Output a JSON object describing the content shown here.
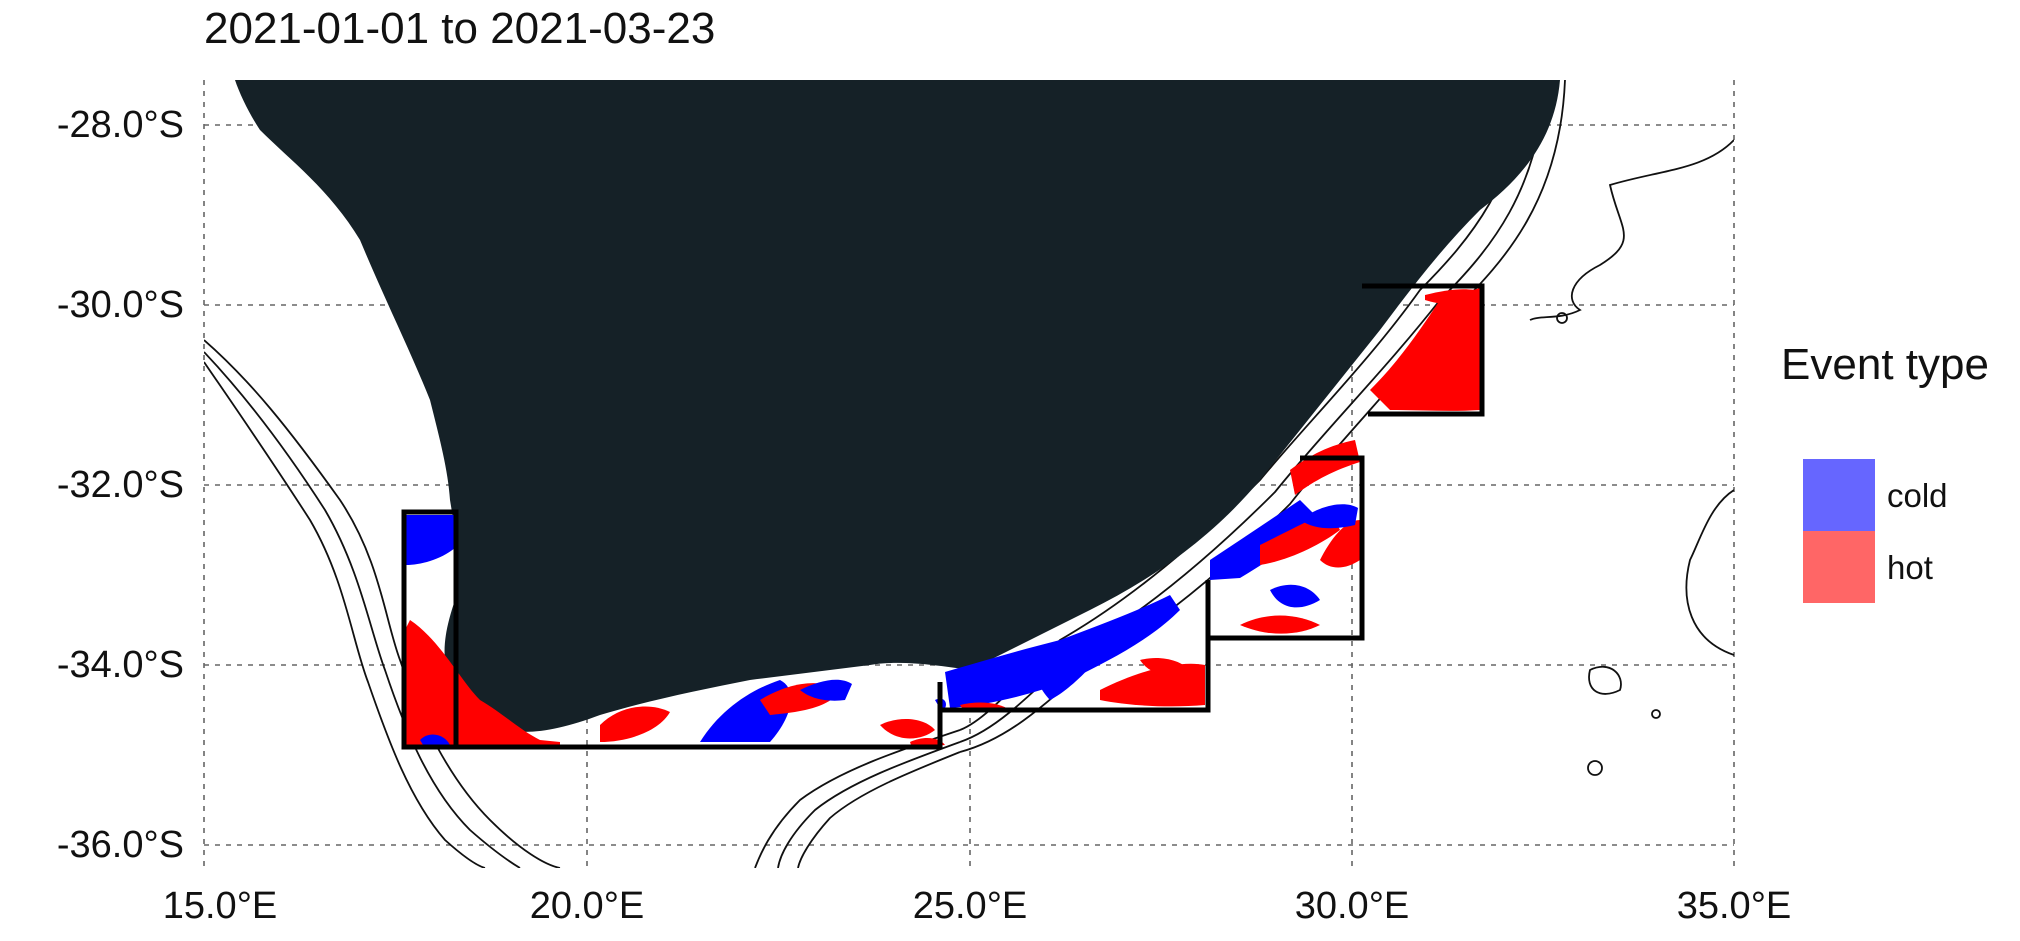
{
  "title": "2021-01-01 to 2021-03-23",
  "map": {
    "lon_range": [
      15.0,
      35.0
    ],
    "lat_range": [
      -36.3,
      -27.5
    ],
    "x_ticks": [
      "15.0°E",
      "20.0°E",
      "25.0°E",
      "30.0°E",
      "35.0°E"
    ],
    "y_ticks": [
      "-28.0°S",
      "-30.0°S",
      "-32.0°S",
      "-34.0°S",
      "-36.0°S"
    ],
    "land_color": "#152127",
    "cold_color": "#0000ff",
    "hot_color": "#ff0000",
    "regions_outlined": 5
  },
  "legend": {
    "title": "Event type",
    "items": [
      {
        "label": "cold",
        "color": "#6666ff"
      },
      {
        "label": "hot",
        "color": "#ff6666"
      }
    ]
  }
}
